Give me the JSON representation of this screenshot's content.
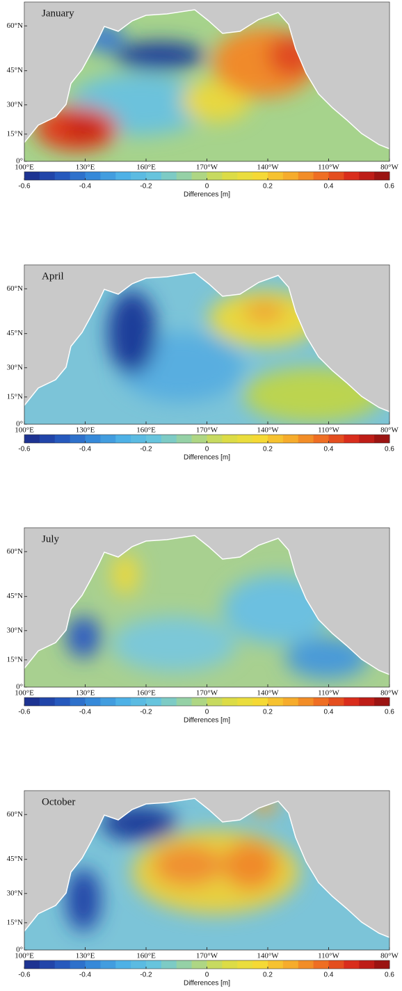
{
  "panels": [
    {
      "title": "January"
    },
    {
      "title": "April"
    },
    {
      "title": "July"
    },
    {
      "title": "October"
    }
  ],
  "ylim": [
    0,
    66
  ],
  "xlim": [
    100,
    280
  ],
  "lat_ticks": [
    {
      "value": 0,
      "label": "0°"
    },
    {
      "value": 15,
      "label": "15°N"
    },
    {
      "value": 30,
      "label": "30°N"
    },
    {
      "value": 45,
      "label": "45°N"
    },
    {
      "value": 60,
      "label": "60°N"
    }
  ],
  "lon_ticks": [
    {
      "value": 100,
      "label": "100°E"
    },
    {
      "value": 130,
      "label": "130°E"
    },
    {
      "value": 160,
      "label": "160°E"
    },
    {
      "value": 190,
      "label": "170°W"
    },
    {
      "value": 220,
      "label": "140°W"
    },
    {
      "value": 250,
      "label": "110°W"
    },
    {
      "value": 280,
      "label": "80°W"
    }
  ],
  "colorbar": {
    "lim": [
      -0.6,
      0.6
    ],
    "ticks": [
      -0.6,
      -0.4,
      -0.2,
      0,
      0.2,
      0.4,
      0.6
    ],
    "label": "Differences [m]"
  }
}
